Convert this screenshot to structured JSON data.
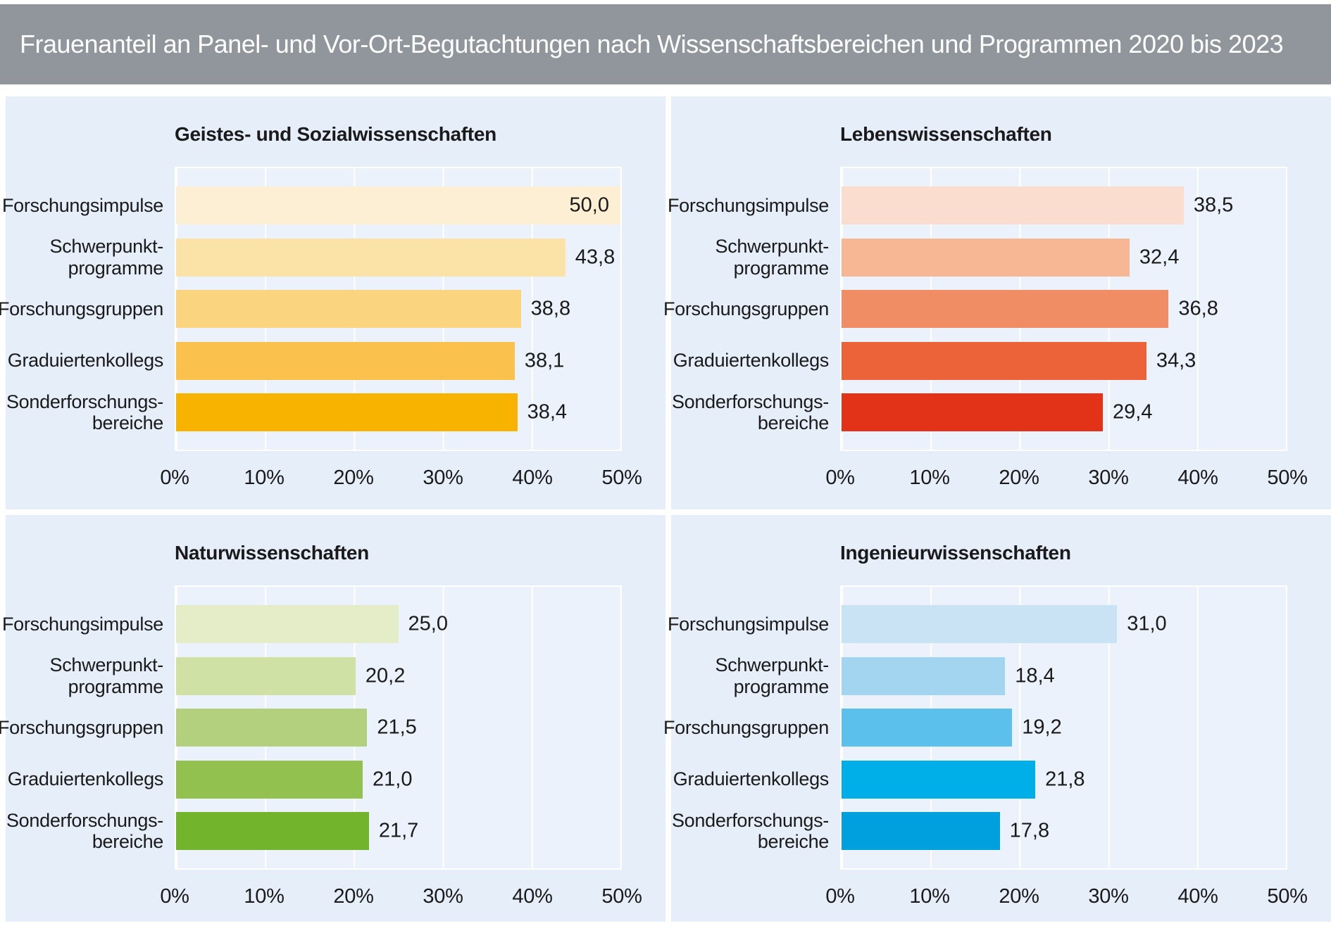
{
  "page": {
    "title": "Frauenanteil an Panel- und Vor-Ort-Begutachtungen nach Wissenschaftsbereichen und Programmen 2020 bis 2023",
    "colors": {
      "title_bar_bg": "#90969C",
      "title_text": "#FFFFFF",
      "panel_bg": "#E6EEF9",
      "plot_bg": "#EBF2FB",
      "gridline": "#FFFFFF",
      "text": "#1A1A1A"
    }
  },
  "axis": {
    "ticks": [
      "0%",
      "10%",
      "20%",
      "30%",
      "40%",
      "50%"
    ],
    "min": 0,
    "max": 50,
    "grid": true
  },
  "chart_data": [
    {
      "type": "bar",
      "orientation": "horizontal",
      "title": "Geistes- und Sozialwissenschaften",
      "categories": [
        "Forschungsimpulse",
        "Schwerpunkt-\nprogramme",
        "Forschungsgruppen",
        "Graduiertenkollegs",
        "Sonderforschungs-\nbereiche"
      ],
      "values": [
        50.0,
        43.8,
        38.8,
        38.1,
        38.4
      ],
      "value_labels": [
        "50,0",
        "43,8",
        "38,8",
        "38,1",
        "38,4"
      ],
      "colors": [
        "#FCEFD4",
        "#FBE2A6",
        "#FBD480",
        "#FAC24C",
        "#F8B200"
      ],
      "xlim": [
        0,
        50
      ]
    },
    {
      "type": "bar",
      "orientation": "horizontal",
      "title": "Lebenswissenschaften",
      "categories": [
        "Forschungsimpulse",
        "Schwerpunkt-\nprogramme",
        "Forschungsgruppen",
        "Graduiertenkollegs",
        "Sonderforschungs-\nbereiche"
      ],
      "values": [
        38.5,
        32.4,
        36.8,
        34.3,
        29.4
      ],
      "value_labels": [
        "38,5",
        "32,4",
        "36,8",
        "34,3",
        "29,4"
      ],
      "colors": [
        "#FADDCE",
        "#F7B795",
        "#F18D64",
        "#EC6239",
        "#E23319"
      ],
      "xlim": [
        0,
        50
      ]
    },
    {
      "type": "bar",
      "orientation": "horizontal",
      "title": "Naturwissenschaften",
      "categories": [
        "Forschungsimpulse",
        "Schwerpunkt-\nprogramme",
        "Forschungsgruppen",
        "Graduiertenkollegs",
        "Sonderforschungs-\nbereiche"
      ],
      "values": [
        25.0,
        20.2,
        21.5,
        21.0,
        21.7
      ],
      "value_labels": [
        "25,0",
        "20,2",
        "21,5",
        "21,0",
        "21,7"
      ],
      "colors": [
        "#E5EDC8",
        "#D0E1A6",
        "#B3D07F",
        "#92C14F",
        "#72B42B"
      ],
      "xlim": [
        0,
        50
      ]
    },
    {
      "type": "bar",
      "orientation": "horizontal",
      "title": "Ingenieurwissenschaften",
      "categories": [
        "Forschungsimpulse",
        "Schwerpunkt-\nprogramme",
        "Forschungsgruppen",
        "Graduiertenkollegs",
        "Sonderforschungs-\nbereiche"
      ],
      "values": [
        31.0,
        18.4,
        19.2,
        21.8,
        17.8
      ],
      "value_labels": [
        "31,0",
        "18,4",
        "19,2",
        "21,8",
        "17,8"
      ],
      "colors": [
        "#C9E3F5",
        "#A3D5F1",
        "#5BC1EC",
        "#00AEE8",
        "#009FDE"
      ],
      "xlim": [
        0,
        50
      ]
    }
  ]
}
